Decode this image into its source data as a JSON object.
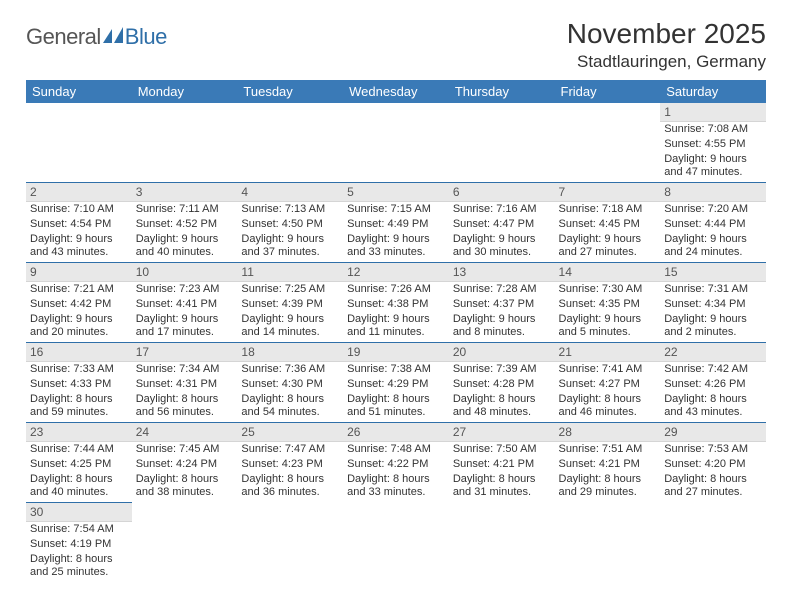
{
  "brand": {
    "part1": "General",
    "part2": "Blue"
  },
  "title": "November 2025",
  "location": "Stadtlauringen, Germany",
  "colors": {
    "header_bg": "#3a7ab7",
    "header_text": "#ffffff",
    "daynum_bg": "#e8e8e8",
    "row_divider": "#2f6fa8",
    "brand_accent": "#2f6fa8",
    "body_text": "#333333"
  },
  "weekday_labels": [
    "Sunday",
    "Monday",
    "Tuesday",
    "Wednesday",
    "Thursday",
    "Friday",
    "Saturday"
  ],
  "grid": {
    "rows": 6,
    "cols": 7,
    "first_day_index": 6,
    "days_in_month": 30
  },
  "days": {
    "1": {
      "sunrise": "7:08 AM",
      "sunset": "4:55 PM",
      "daylight": "9 hours and 47 minutes."
    },
    "2": {
      "sunrise": "7:10 AM",
      "sunset": "4:54 PM",
      "daylight": "9 hours and 43 minutes."
    },
    "3": {
      "sunrise": "7:11 AM",
      "sunset": "4:52 PM",
      "daylight": "9 hours and 40 minutes."
    },
    "4": {
      "sunrise": "7:13 AM",
      "sunset": "4:50 PM",
      "daylight": "9 hours and 37 minutes."
    },
    "5": {
      "sunrise": "7:15 AM",
      "sunset": "4:49 PM",
      "daylight": "9 hours and 33 minutes."
    },
    "6": {
      "sunrise": "7:16 AM",
      "sunset": "4:47 PM",
      "daylight": "9 hours and 30 minutes."
    },
    "7": {
      "sunrise": "7:18 AM",
      "sunset": "4:45 PM",
      "daylight": "9 hours and 27 minutes."
    },
    "8": {
      "sunrise": "7:20 AM",
      "sunset": "4:44 PM",
      "daylight": "9 hours and 24 minutes."
    },
    "9": {
      "sunrise": "7:21 AM",
      "sunset": "4:42 PM",
      "daylight": "9 hours and 20 minutes."
    },
    "10": {
      "sunrise": "7:23 AM",
      "sunset": "4:41 PM",
      "daylight": "9 hours and 17 minutes."
    },
    "11": {
      "sunrise": "7:25 AM",
      "sunset": "4:39 PM",
      "daylight": "9 hours and 14 minutes."
    },
    "12": {
      "sunrise": "7:26 AM",
      "sunset": "4:38 PM",
      "daylight": "9 hours and 11 minutes."
    },
    "13": {
      "sunrise": "7:28 AM",
      "sunset": "4:37 PM",
      "daylight": "9 hours and 8 minutes."
    },
    "14": {
      "sunrise": "7:30 AM",
      "sunset": "4:35 PM",
      "daylight": "9 hours and 5 minutes."
    },
    "15": {
      "sunrise": "7:31 AM",
      "sunset": "4:34 PM",
      "daylight": "9 hours and 2 minutes."
    },
    "16": {
      "sunrise": "7:33 AM",
      "sunset": "4:33 PM",
      "daylight": "8 hours and 59 minutes."
    },
    "17": {
      "sunrise": "7:34 AM",
      "sunset": "4:31 PM",
      "daylight": "8 hours and 56 minutes."
    },
    "18": {
      "sunrise": "7:36 AM",
      "sunset": "4:30 PM",
      "daylight": "8 hours and 54 minutes."
    },
    "19": {
      "sunrise": "7:38 AM",
      "sunset": "4:29 PM",
      "daylight": "8 hours and 51 minutes."
    },
    "20": {
      "sunrise": "7:39 AM",
      "sunset": "4:28 PM",
      "daylight": "8 hours and 48 minutes."
    },
    "21": {
      "sunrise": "7:41 AM",
      "sunset": "4:27 PM",
      "daylight": "8 hours and 46 minutes."
    },
    "22": {
      "sunrise": "7:42 AM",
      "sunset": "4:26 PM",
      "daylight": "8 hours and 43 minutes."
    },
    "23": {
      "sunrise": "7:44 AM",
      "sunset": "4:25 PM",
      "daylight": "8 hours and 40 minutes."
    },
    "24": {
      "sunrise": "7:45 AM",
      "sunset": "4:24 PM",
      "daylight": "8 hours and 38 minutes."
    },
    "25": {
      "sunrise": "7:47 AM",
      "sunset": "4:23 PM",
      "daylight": "8 hours and 36 minutes."
    },
    "26": {
      "sunrise": "7:48 AM",
      "sunset": "4:22 PM",
      "daylight": "8 hours and 33 minutes."
    },
    "27": {
      "sunrise": "7:50 AM",
      "sunset": "4:21 PM",
      "daylight": "8 hours and 31 minutes."
    },
    "28": {
      "sunrise": "7:51 AM",
      "sunset": "4:21 PM",
      "daylight": "8 hours and 29 minutes."
    },
    "29": {
      "sunrise": "7:53 AM",
      "sunset": "4:20 PM",
      "daylight": "8 hours and 27 minutes."
    },
    "30": {
      "sunrise": "7:54 AM",
      "sunset": "4:19 PM",
      "daylight": "8 hours and 25 minutes."
    }
  },
  "labels": {
    "sunrise": "Sunrise:",
    "sunset": "Sunset:",
    "daylight": "Daylight:"
  }
}
